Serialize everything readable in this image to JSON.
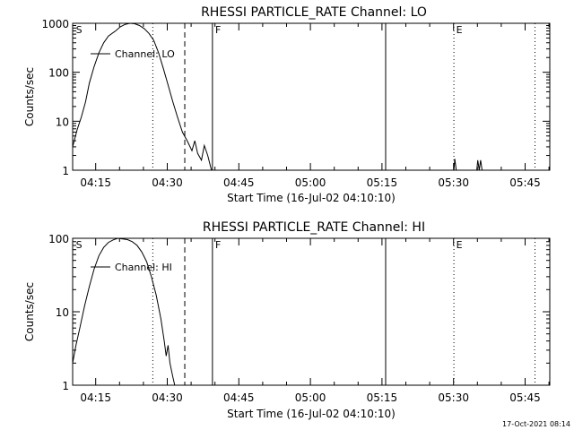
{
  "chart_data": [
    {
      "type": "line",
      "title": "RHESSI PARTICLE_RATE Channel: LO",
      "xlabel": "Start Time (16-Jul-02 04:10:10)",
      "ylabel": "Counts/sec",
      "yscale": "log",
      "ylim": [
        1,
        1000
      ],
      "xlim_minutes": [
        0,
        100
      ],
      "y_ticks": [
        {
          "value": 1,
          "label": "1"
        },
        {
          "value": 10,
          "label": "10"
        },
        {
          "value": 100,
          "label": "100"
        },
        {
          "value": 1000,
          "label": "1000"
        }
      ],
      "x_ticks": [
        {
          "min": 4.83,
          "label": "04:15"
        },
        {
          "min": 19.83,
          "label": "04:30"
        },
        {
          "min": 34.83,
          "label": "04:45"
        },
        {
          "min": 49.83,
          "label": "05:00"
        },
        {
          "min": 64.83,
          "label": "05:15"
        },
        {
          "min": 79.83,
          "label": "05:30"
        },
        {
          "min": 94.83,
          "label": "05:45"
        }
      ],
      "legend": {
        "label": "Channel: LO",
        "placement": "top-left"
      },
      "annotations": [
        {
          "label": "S",
          "min": 0.3
        },
        {
          "label": "F",
          "min": 29.5
        },
        {
          "label": "E",
          "min": 80.0
        }
      ],
      "vertical_lines": [
        {
          "min": 16.8,
          "style": "dotted"
        },
        {
          "min": 23.5,
          "style": "dashed"
        },
        {
          "min": 29.3,
          "style": "solid"
        },
        {
          "min": 65.6,
          "style": "solid"
        },
        {
          "min": 79.9,
          "style": "dotted"
        },
        {
          "min": 96.9,
          "style": "dotted"
        }
      ],
      "series": [
        {
          "name": "Channel: LO",
          "segments": [
            [
              [
                0,
                3
              ],
              [
                1,
                7
              ],
              [
                1.8,
                12
              ],
              [
                2.7,
                25
              ],
              [
                3.5,
                60
              ],
              [
                4.5,
                130
              ],
              [
                5.5,
                250
              ],
              [
                6.5,
                400
              ],
              [
                7.5,
                550
              ],
              [
                9,
                700
              ],
              [
                10,
                850
              ],
              [
                11,
                950
              ],
              [
                12,
                1000
              ],
              [
                13,
                980
              ],
              [
                14,
                900
              ],
              [
                15,
                780
              ],
              [
                16,
                620
              ],
              [
                17,
                450
              ],
              [
                18,
                250
              ],
              [
                19,
                120
              ],
              [
                20,
                55
              ],
              [
                21,
                25
              ],
              [
                22,
                12
              ],
              [
                23,
                6
              ],
              [
                24,
                4
              ],
              [
                25,
                2.5
              ],
              [
                25.6,
                4
              ],
              [
                26.2,
                2.2
              ],
              [
                27,
                1.6
              ],
              [
                27.6,
                3.2
              ],
              [
                28.3,
                2
              ],
              [
                28.8,
                1.3
              ],
              [
                29.1,
                1
              ]
            ],
            [
              [
                79.9,
                1
              ],
              [
                80.1,
                1.7
              ],
              [
                80.4,
                1
              ]
            ],
            [
              [
                84.7,
                1
              ],
              [
                84.9,
                1.6
              ],
              [
                85.2,
                1
              ],
              [
                85.5,
                1.6
              ],
              [
                85.8,
                1
              ]
            ]
          ]
        }
      ]
    },
    {
      "type": "line",
      "title": "RHESSI PARTICLE_RATE Channel: HI",
      "xlabel": "Start Time (16-Jul-02 04:10:10)",
      "ylabel": "Counts/sec",
      "yscale": "log",
      "ylim": [
        1,
        100
      ],
      "xlim_minutes": [
        0,
        100
      ],
      "y_ticks": [
        {
          "value": 1,
          "label": "1"
        },
        {
          "value": 10,
          "label": "10"
        },
        {
          "value": 100,
          "label": "100"
        }
      ],
      "x_ticks": [
        {
          "min": 4.83,
          "label": "04:15"
        },
        {
          "min": 19.83,
          "label": "04:30"
        },
        {
          "min": 34.83,
          "label": "04:45"
        },
        {
          "min": 49.83,
          "label": "05:00"
        },
        {
          "min": 64.83,
          "label": "05:15"
        },
        {
          "min": 79.83,
          "label": "05:30"
        },
        {
          "min": 94.83,
          "label": "05:45"
        }
      ],
      "legend": {
        "label": "Channel: HI",
        "placement": "top-left"
      },
      "annotations": [
        {
          "label": "S",
          "min": 0.3
        },
        {
          "label": "F",
          "min": 29.5
        },
        {
          "label": "E",
          "min": 80.0
        }
      ],
      "vertical_lines": [
        {
          "min": 16.8,
          "style": "dotted"
        },
        {
          "min": 23.5,
          "style": "dashed"
        },
        {
          "min": 29.3,
          "style": "solid"
        },
        {
          "min": 65.6,
          "style": "solid"
        },
        {
          "min": 79.9,
          "style": "dotted"
        },
        {
          "min": 96.9,
          "style": "dotted"
        }
      ],
      "series": [
        {
          "name": "Channel: HI",
          "segments": [
            [
              [
                0,
                2
              ],
              [
                0.7,
                3.5
              ],
              [
                1.5,
                6
              ],
              [
                2.5,
                12
              ],
              [
                3.5,
                22
              ],
              [
                4.5,
                38
              ],
              [
                5.5,
                58
              ],
              [
                6.5,
                75
              ],
              [
                7.5,
                88
              ],
              [
                8.5,
                95
              ],
              [
                9.5,
                100
              ],
              [
                10.5,
                98
              ],
              [
                11.5,
                96
              ],
              [
                12.5,
                90
              ],
              [
                13.5,
                80
              ],
              [
                14.5,
                65
              ],
              [
                15.5,
                48
              ],
              [
                16.5,
                30
              ],
              [
                17.5,
                17
              ],
              [
                18.5,
                8
              ],
              [
                19.2,
                4
              ],
              [
                19.6,
                2.5
              ],
              [
                20,
                3.5
              ],
              [
                20.4,
                2
              ],
              [
                21,
                1.3
              ],
              [
                21.4,
                1
              ]
            ]
          ]
        }
      ]
    }
  ],
  "timestamp": "17-Oct-2021 08:14"
}
